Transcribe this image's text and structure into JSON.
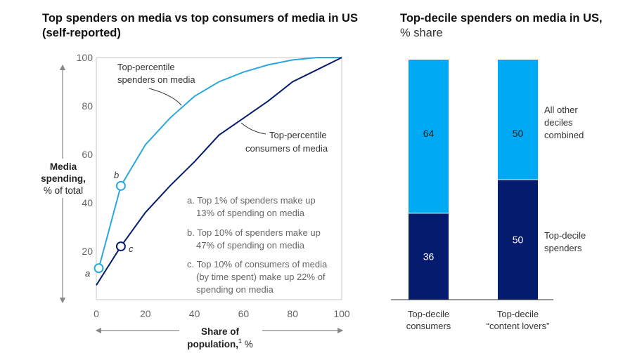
{
  "left_chart": {
    "title": "Top spenders on media vs top consumers of media in US",
    "title_line2": "(self-reported)",
    "ylabel_bold_1": "Media",
    "ylabel_bold_2": "spending,",
    "ylabel_normal": "% of total",
    "xlabel_bold_1": "Share of",
    "xlabel_bold_2": "population,",
    "xlabel_sup": "1",
    "xlabel_unit": " %",
    "series_labels": {
      "spenders_1": "Top-percentile",
      "spenders_2": "spenders on media",
      "consumers_1": "Top-percentile",
      "consumers_2": "consumers of media"
    },
    "point_labels": {
      "a": "a",
      "b": "b",
      "c": "c"
    },
    "notes": [
      {
        "lines": [
          "a. Top 1% of spenders make up",
          "13% of spending on media"
        ]
      },
      {
        "lines": [
          "b. Top 10% of spenders make up",
          "47% of spending on media"
        ]
      },
      {
        "lines": [
          "c. Top 10% of consumers of media",
          "(by time spent) make up 22% of",
          "spending on media"
        ]
      }
    ]
  },
  "right_chart": {
    "title": "Top-decile spenders on media in US,",
    "subtitle": "% share",
    "legend_top_1": "All other",
    "legend_top_2": "deciles",
    "legend_top_3": "combined",
    "legend_bottom_1": "Top-decile",
    "legend_bottom_2": "spenders",
    "colors": {
      "light": "#00A9F4",
      "dark": "#051C6E"
    }
  },
  "chart_data": [
    {
      "type": "line",
      "xlim": [
        0,
        100
      ],
      "ylim": [
        0,
        100
      ],
      "x_ticks": [
        0,
        20,
        40,
        60,
        80,
        100
      ],
      "y_ticks": [
        20,
        40,
        60,
        80,
        100
      ],
      "series": [
        {
          "name": "Top-percentile spenders on media",
          "color": "#29A8E0",
          "x": [
            1,
            10,
            20,
            30,
            40,
            50,
            60,
            70,
            80,
            90,
            100
          ],
          "y": [
            13,
            47,
            64,
            75,
            84,
            90,
            94,
            97,
            99,
            100,
            100
          ]
        },
        {
          "name": "Top-percentile consumers of media",
          "color": "#051C6E",
          "x": [
            0,
            10,
            20,
            30,
            40,
            50,
            60,
            70,
            80,
            90,
            100
          ],
          "y": [
            6,
            22,
            36,
            47,
            57,
            68,
            75,
            82,
            90,
            95,
            100
          ]
        }
      ],
      "markers": [
        {
          "label": "a",
          "series": 0,
          "x": 1,
          "y": 13
        },
        {
          "label": "b",
          "series": 0,
          "x": 10,
          "y": 47
        },
        {
          "label": "c",
          "series": 1,
          "x": 10,
          "y": 22
        }
      ]
    },
    {
      "type": "bar",
      "stacked": true,
      "categories": [
        [
          "Top-decile",
          "consumers"
        ],
        [
          "Top-decile",
          "“content lovers”"
        ]
      ],
      "series": [
        {
          "name": "Top-decile spenders",
          "color": "#051C6E",
          "values": [
            36,
            50
          ]
        },
        {
          "name": "All other deciles combined",
          "color": "#00A9F4",
          "values": [
            64,
            50
          ]
        }
      ]
    }
  ]
}
